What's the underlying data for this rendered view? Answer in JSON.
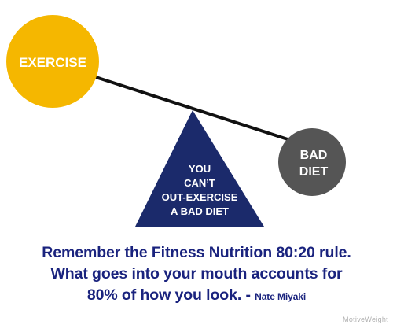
{
  "diagram": {
    "left_circle": {
      "label": "EXERCISE",
      "color": "#f5b700"
    },
    "right_circle": {
      "label_lines": [
        "BAD",
        "DIET"
      ],
      "color": "#555555"
    },
    "fulcrum": {
      "label_lines": [
        "YOU",
        "CAN’T",
        "OUT-EXERCISE",
        "A BAD DIET"
      ],
      "color": "#1b2a6b"
    },
    "beam_color": "#111111"
  },
  "quote": {
    "line1": "Remember the Fitness Nutrition 80:20 rule.",
    "line2": "What goes into your mouth accounts for",
    "line3": "80% of how you look. - ",
    "author": "Nate Miyaki",
    "color": "#1a237e"
  },
  "watermark": "MotiveWeight"
}
